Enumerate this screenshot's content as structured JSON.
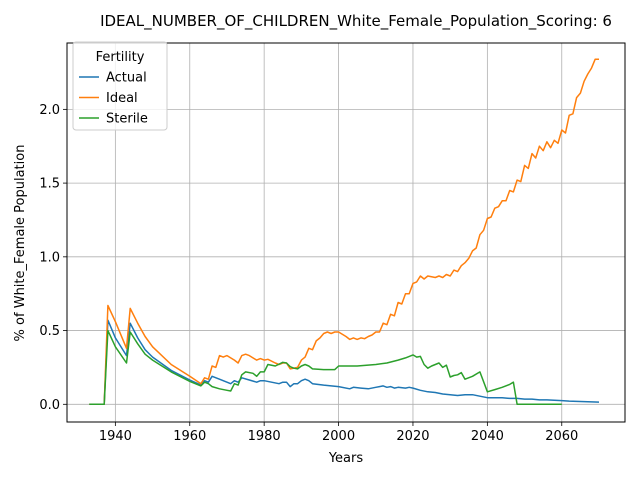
{
  "chart_data": {
    "type": "line",
    "title": "IDEAL_NUMBER_OF_CHILDREN_White_Female_Population_Scoring: 6",
    "xlabel": "Years",
    "ylabel": "% of White_Female Population",
    "xlim": [
      1927,
      2077
    ],
    "ylim": [
      -0.12,
      2.45
    ],
    "xticks": [
      1940,
      1960,
      1980,
      2000,
      2020,
      2040,
      2060
    ],
    "yticks": [
      0.0,
      0.5,
      1.0,
      1.5,
      2.0
    ],
    "ytick_labels": [
      "0.0",
      "0.5",
      "1.0",
      "1.5",
      "2.0"
    ],
    "grid": true,
    "legend": {
      "title": "Fertility",
      "placement": "top-left"
    },
    "series": [
      {
        "name": "Actual",
        "color": "#1f77b4",
        "points": [
          [
            1933,
            0.0
          ],
          [
            1937,
            0.0
          ],
          [
            1938,
            0.57
          ],
          [
            1940,
            0.45
          ],
          [
            1943,
            0.33
          ],
          [
            1944,
            0.55
          ],
          [
            1946,
            0.45
          ],
          [
            1948,
            0.37
          ],
          [
            1950,
            0.32
          ],
          [
            1955,
            0.23
          ],
          [
            1960,
            0.165
          ],
          [
            1963,
            0.13
          ],
          [
            1964,
            0.16
          ],
          [
            1965,
            0.15
          ],
          [
            1966,
            0.19
          ],
          [
            1968,
            0.17
          ],
          [
            1970,
            0.15
          ],
          [
            1971,
            0.14
          ],
          [
            1972,
            0.16
          ],
          [
            1973,
            0.15
          ],
          [
            1974,
            0.18
          ],
          [
            1976,
            0.165
          ],
          [
            1978,
            0.15
          ],
          [
            1979,
            0.16
          ],
          [
            1980,
            0.16
          ],
          [
            1982,
            0.15
          ],
          [
            1984,
            0.14
          ],
          [
            1985,
            0.15
          ],
          [
            1986,
            0.15
          ],
          [
            1987,
            0.12
          ],
          [
            1988,
            0.14
          ],
          [
            1989,
            0.14
          ],
          [
            1990,
            0.16
          ],
          [
            1991,
            0.17
          ],
          [
            1992,
            0.16
          ],
          [
            1993,
            0.14
          ],
          [
            1996,
            0.13
          ],
          [
            2000,
            0.12
          ],
          [
            2003,
            0.105
          ],
          [
            2004,
            0.115
          ],
          [
            2006,
            0.11
          ],
          [
            2008,
            0.105
          ],
          [
            2010,
            0.115
          ],
          [
            2011,
            0.12
          ],
          [
            2012,
            0.125
          ],
          [
            2013,
            0.115
          ],
          [
            2014,
            0.12
          ],
          [
            2015,
            0.11
          ],
          [
            2016,
            0.115
          ],
          [
            2018,
            0.11
          ],
          [
            2019,
            0.115
          ],
          [
            2020,
            0.11
          ],
          [
            2022,
            0.095
          ],
          [
            2024,
            0.085
          ],
          [
            2026,
            0.08
          ],
          [
            2028,
            0.07
          ],
          [
            2030,
            0.065
          ],
          [
            2032,
            0.06
          ],
          [
            2034,
            0.065
          ],
          [
            2036,
            0.065
          ],
          [
            2038,
            0.055
          ],
          [
            2040,
            0.045
          ],
          [
            2042,
            0.045
          ],
          [
            2044,
            0.045
          ],
          [
            2046,
            0.04
          ],
          [
            2048,
            0.04
          ],
          [
            2050,
            0.035
          ],
          [
            2052,
            0.035
          ],
          [
            2054,
            0.03
          ],
          [
            2056,
            0.03
          ],
          [
            2058,
            0.028
          ],
          [
            2060,
            0.025
          ],
          [
            2062,
            0.022
          ],
          [
            2064,
            0.02
          ],
          [
            2066,
            0.018
          ],
          [
            2068,
            0.016
          ],
          [
            2070,
            0.015
          ]
        ]
      },
      {
        "name": "Ideal",
        "color": "#ff7f0e",
        "points": [
          [
            1933,
            0.0
          ],
          [
            1937,
            0.0
          ],
          [
            1938,
            0.67
          ],
          [
            1940,
            0.56
          ],
          [
            1943,
            0.38
          ],
          [
            1944,
            0.65
          ],
          [
            1946,
            0.55
          ],
          [
            1948,
            0.46
          ],
          [
            1950,
            0.39
          ],
          [
            1955,
            0.27
          ],
          [
            1960,
            0.19
          ],
          [
            1963,
            0.14
          ],
          [
            1964,
            0.18
          ],
          [
            1965,
            0.17
          ],
          [
            1966,
            0.26
          ],
          [
            1967,
            0.25
          ],
          [
            1968,
            0.33
          ],
          [
            1969,
            0.32
          ],
          [
            1970,
            0.33
          ],
          [
            1972,
            0.3
          ],
          [
            1973,
            0.28
          ],
          [
            1974,
            0.33
          ],
          [
            1975,
            0.34
          ],
          [
            1976,
            0.33
          ],
          [
            1978,
            0.3
          ],
          [
            1979,
            0.31
          ],
          [
            1980,
            0.3
          ],
          [
            1981,
            0.305
          ],
          [
            1983,
            0.28
          ],
          [
            1984,
            0.27
          ],
          [
            1985,
            0.28
          ],
          [
            1986,
            0.28
          ],
          [
            1987,
            0.24
          ],
          [
            1989,
            0.25
          ],
          [
            1990,
            0.3
          ],
          [
            1991,
            0.32
          ],
          [
            1992,
            0.38
          ],
          [
            1993,
            0.37
          ],
          [
            1994,
            0.43
          ],
          [
            1995,
            0.45
          ],
          [
            1996,
            0.48
          ],
          [
            1997,
            0.49
          ],
          [
            1998,
            0.48
          ],
          [
            1999,
            0.49
          ],
          [
            2000,
            0.49
          ],
          [
            2002,
            0.46
          ],
          [
            2003,
            0.44
          ],
          [
            2004,
            0.45
          ],
          [
            2005,
            0.44
          ],
          [
            2006,
            0.45
          ],
          [
            2007,
            0.445
          ],
          [
            2008,
            0.46
          ],
          [
            2009,
            0.47
          ],
          [
            2010,
            0.49
          ],
          [
            2011,
            0.49
          ],
          [
            2012,
            0.55
          ],
          [
            2013,
            0.54
          ],
          [
            2014,
            0.61
          ],
          [
            2015,
            0.6
          ],
          [
            2016,
            0.69
          ],
          [
            2017,
            0.68
          ],
          [
            2018,
            0.75
          ],
          [
            2019,
            0.75
          ],
          [
            2020,
            0.82
          ],
          [
            2021,
            0.83
          ],
          [
            2022,
            0.87
          ],
          [
            2023,
            0.85
          ],
          [
            2024,
            0.87
          ],
          [
            2026,
            0.86
          ],
          [
            2027,
            0.87
          ],
          [
            2028,
            0.86
          ],
          [
            2029,
            0.88
          ],
          [
            2030,
            0.87
          ],
          [
            2031,
            0.91
          ],
          [
            2032,
            0.9
          ],
          [
            2033,
            0.94
          ],
          [
            2034,
            0.96
          ],
          [
            2035,
            0.99
          ],
          [
            2036,
            1.04
          ],
          [
            2037,
            1.06
          ],
          [
            2038,
            1.15
          ],
          [
            2039,
            1.18
          ],
          [
            2040,
            1.26
          ],
          [
            2041,
            1.27
          ],
          [
            2042,
            1.33
          ],
          [
            2043,
            1.34
          ],
          [
            2044,
            1.38
          ],
          [
            2045,
            1.38
          ],
          [
            2046,
            1.45
          ],
          [
            2047,
            1.44
          ],
          [
            2048,
            1.52
          ],
          [
            2049,
            1.51
          ],
          [
            2050,
            1.62
          ],
          [
            2051,
            1.6
          ],
          [
            2052,
            1.7
          ],
          [
            2053,
            1.67
          ],
          [
            2054,
            1.75
          ],
          [
            2055,
            1.72
          ],
          [
            2056,
            1.78
          ],
          [
            2057,
            1.74
          ],
          [
            2058,
            1.79
          ],
          [
            2059,
            1.77
          ],
          [
            2060,
            1.86
          ],
          [
            2061,
            1.84
          ],
          [
            2062,
            1.96
          ],
          [
            2063,
            1.97
          ],
          [
            2064,
            2.08
          ],
          [
            2065,
            2.11
          ],
          [
            2066,
            2.19
          ],
          [
            2067,
            2.24
          ],
          [
            2068,
            2.28
          ],
          [
            2069,
            2.34
          ],
          [
            2070,
            2.34
          ]
        ]
      },
      {
        "name": "Sterile",
        "color": "#2ca02c",
        "points": [
          [
            1933,
            0.0
          ],
          [
            1937,
            0.0
          ],
          [
            1938,
            0.5
          ],
          [
            1940,
            0.39
          ],
          [
            1943,
            0.28
          ],
          [
            1944,
            0.49
          ],
          [
            1946,
            0.41
          ],
          [
            1948,
            0.34
          ],
          [
            1950,
            0.3
          ],
          [
            1955,
            0.22
          ],
          [
            1960,
            0.155
          ],
          [
            1963,
            0.125
          ],
          [
            1964,
            0.15
          ],
          [
            1965,
            0.14
          ],
          [
            1966,
            0.12
          ],
          [
            1968,
            0.105
          ],
          [
            1970,
            0.095
          ],
          [
            1971,
            0.09
          ],
          [
            1972,
            0.14
          ],
          [
            1973,
            0.13
          ],
          [
            1974,
            0.2
          ],
          [
            1975,
            0.22
          ],
          [
            1977,
            0.21
          ],
          [
            1978,
            0.19
          ],
          [
            1979,
            0.22
          ],
          [
            1980,
            0.22
          ],
          [
            1981,
            0.27
          ],
          [
            1983,
            0.26
          ],
          [
            1985,
            0.285
          ],
          [
            1986,
            0.28
          ],
          [
            1987,
            0.255
          ],
          [
            1988,
            0.245
          ],
          [
            1989,
            0.24
          ],
          [
            1990,
            0.26
          ],
          [
            1991,
            0.27
          ],
          [
            1992,
            0.26
          ],
          [
            1993,
            0.24
          ],
          [
            1996,
            0.235
          ],
          [
            1999,
            0.235
          ],
          [
            2000,
            0.26
          ],
          [
            2005,
            0.26
          ],
          [
            2010,
            0.27
          ],
          [
            2013,
            0.28
          ],
          [
            2016,
            0.3
          ],
          [
            2018,
            0.315
          ],
          [
            2020,
            0.335
          ],
          [
            2021,
            0.32
          ],
          [
            2022,
            0.325
          ],
          [
            2023,
            0.27
          ],
          [
            2024,
            0.245
          ],
          [
            2025,
            0.26
          ],
          [
            2026,
            0.27
          ],
          [
            2027,
            0.28
          ],
          [
            2028,
            0.25
          ],
          [
            2029,
            0.265
          ],
          [
            2030,
            0.185
          ],
          [
            2031,
            0.195
          ],
          [
            2032,
            0.2
          ],
          [
            2033,
            0.215
          ],
          [
            2034,
            0.17
          ],
          [
            2036,
            0.19
          ],
          [
            2038,
            0.22
          ],
          [
            2040,
            0.085
          ],
          [
            2042,
            0.1
          ],
          [
            2044,
            0.115
          ],
          [
            2046,
            0.135
          ],
          [
            2047,
            0.15
          ],
          [
            2048,
            0.0
          ],
          [
            2050,
            0.0
          ],
          [
            2055,
            0.0
          ],
          [
            2060,
            0.0
          ]
        ]
      }
    ]
  }
}
